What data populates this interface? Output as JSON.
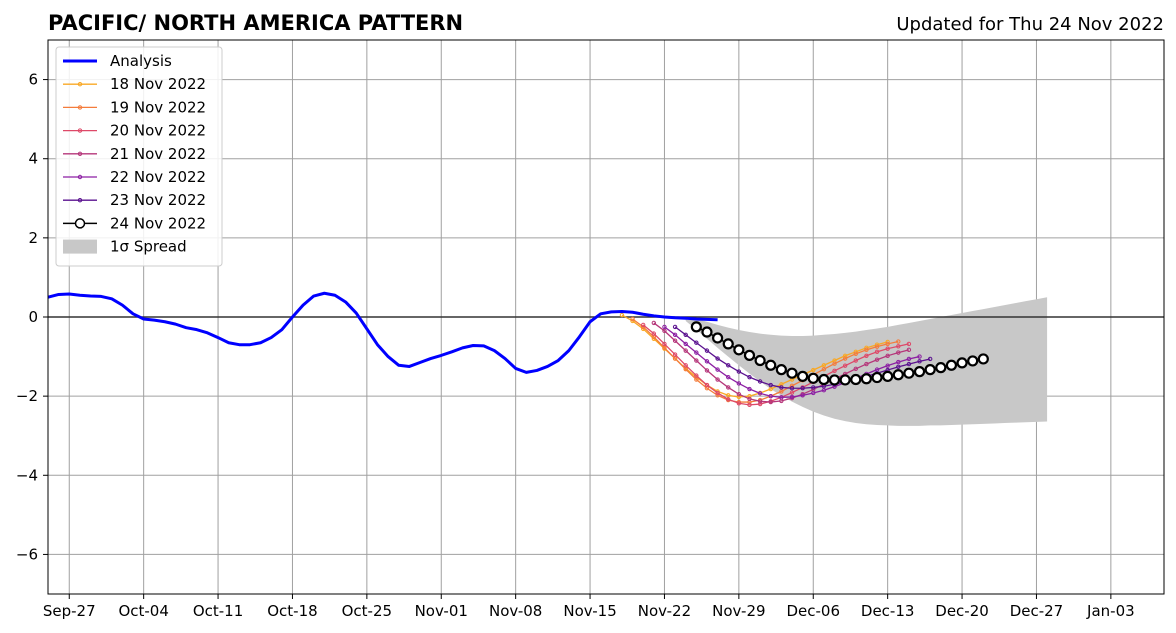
{
  "chart_data": {
    "type": "line",
    "title": "PACIFIC/ NORTH AMERICA PATTERN",
    "subtitle": "Updated for Thu 24 Nov 2022",
    "xlabel": "",
    "ylabel": "",
    "x_ticks": [
      "Sep-27",
      "Oct-04",
      "Oct-11",
      "Oct-18",
      "Oct-25",
      "Nov-01",
      "Nov-08",
      "Nov-15",
      "Nov-22",
      "Nov-29",
      "Dec-06",
      "Dec-13",
      "Dec-20",
      "Dec-27",
      "Jan-03"
    ],
    "y_ticks": [
      "6",
      "4",
      "2",
      "0",
      "−2",
      "−4",
      "−6"
    ],
    "x_range": [
      "2022-09-25",
      "2023-01-08"
    ],
    "ylim": [
      -7,
      7
    ],
    "grid": true,
    "legend_position": "upper-left",
    "analysis": {
      "name": "Analysis",
      "color": "#0000ff",
      "start_date": "2022-09-25",
      "values": [
        0.5,
        0.57,
        0.58,
        0.55,
        0.53,
        0.52,
        0.46,
        0.3,
        0.08,
        -0.05,
        -0.08,
        -0.12,
        -0.18,
        -0.27,
        -0.32,
        -0.4,
        -0.52,
        -0.65,
        -0.7,
        -0.7,
        -0.65,
        -0.52,
        -0.32,
        0.0,
        0.3,
        0.53,
        0.6,
        0.55,
        0.38,
        0.1,
        -0.3,
        -0.7,
        -1.0,
        -1.22,
        -1.25,
        -1.15,
        -1.05,
        -0.97,
        -0.88,
        -0.78,
        -0.72,
        -0.73,
        -0.85,
        -1.05,
        -1.3,
        -1.4,
        -1.35,
        -1.25,
        -1.1,
        -0.85,
        -0.5,
        -0.12,
        0.08,
        0.13,
        0.14,
        0.12,
        0.07,
        0.03,
        0.0,
        -0.02,
        -0.03,
        -0.05,
        -0.06,
        -0.07
      ]
    },
    "series": [
      {
        "name": "18 Nov 2022",
        "color": "#f9a825",
        "start_date": "2022-11-18",
        "values": [
          0.05,
          -0.1,
          -0.3,
          -0.55,
          -0.8,
          -1.05,
          -1.3,
          -1.52,
          -1.72,
          -1.88,
          -1.98,
          -2.02,
          -2.0,
          -1.92,
          -1.82,
          -1.7,
          -1.58,
          -1.46,
          -1.34,
          -1.22,
          -1.1,
          -0.98,
          -0.88,
          -0.78,
          -0.7,
          -0.63
        ]
      },
      {
        "name": "19 Nov 2022",
        "color": "#f47c3c",
        "start_date": "2022-11-19",
        "values": [
          -0.05,
          -0.25,
          -0.5,
          -0.78,
          -1.05,
          -1.32,
          -1.58,
          -1.8,
          -1.98,
          -2.1,
          -2.15,
          -2.15,
          -2.1,
          -2.0,
          -1.88,
          -1.74,
          -1.6,
          -1.46,
          -1.32,
          -1.18,
          -1.05,
          -0.93,
          -0.83,
          -0.75,
          -0.68,
          -0.62
        ]
      },
      {
        "name": "20 Nov 2022",
        "color": "#de4968",
        "start_date": "2022-11-20",
        "values": [
          -0.2,
          -0.42,
          -0.68,
          -0.95,
          -1.22,
          -1.48,
          -1.72,
          -1.92,
          -2.08,
          -2.18,
          -2.22,
          -2.2,
          -2.13,
          -2.03,
          -1.91,
          -1.78,
          -1.64,
          -1.5,
          -1.36,
          -1.23,
          -1.1,
          -0.98,
          -0.88,
          -0.8,
          -0.74,
          -0.68
        ]
      },
      {
        "name": "21 Nov 2022",
        "color": "#b5367a",
        "start_date": "2022-11-21",
        "values": [
          -0.15,
          -0.35,
          -0.6,
          -0.85,
          -1.1,
          -1.35,
          -1.58,
          -1.78,
          -1.95,
          -2.07,
          -2.13,
          -2.15,
          -2.12,
          -2.05,
          -1.95,
          -1.83,
          -1.7,
          -1.57,
          -1.44,
          -1.31,
          -1.19,
          -1.08,
          -0.98,
          -0.9,
          -0.83
        ]
      },
      {
        "name": "22 Nov 2022",
        "color": "#8c1fa3",
        "start_date": "2022-11-22",
        "values": [
          -0.25,
          -0.45,
          -0.68,
          -0.9,
          -1.12,
          -1.33,
          -1.52,
          -1.68,
          -1.82,
          -1.93,
          -2.0,
          -2.03,
          -2.02,
          -1.98,
          -1.92,
          -1.85,
          -1.76,
          -1.66,
          -1.55,
          -1.44,
          -1.33,
          -1.23,
          -1.14,
          -1.06,
          -1.0
        ]
      },
      {
        "name": "23 Nov 2022",
        "color": "#5a118f",
        "start_date": "2022-11-23",
        "values": [
          -0.25,
          -0.45,
          -0.65,
          -0.85,
          -1.05,
          -1.22,
          -1.38,
          -1.52,
          -1.63,
          -1.72,
          -1.78,
          -1.8,
          -1.8,
          -1.78,
          -1.75,
          -1.7,
          -1.64,
          -1.57,
          -1.5,
          -1.42,
          -1.34,
          -1.26,
          -1.19,
          -1.12,
          -1.06
        ]
      },
      {
        "name": "24 Nov 2022",
        "color": "#000000",
        "marker": "open-circle",
        "start_date": "2022-11-25",
        "values": [
          -0.25,
          -0.38,
          -0.53,
          -0.68,
          -0.83,
          -0.97,
          -1.1,
          -1.22,
          -1.33,
          -1.42,
          -1.5,
          -1.55,
          -1.58,
          -1.59,
          -1.59,
          -1.58,
          -1.56,
          -1.53,
          -1.5,
          -1.46,
          -1.42,
          -1.38,
          -1.33,
          -1.28,
          -1.22,
          -1.16,
          -1.11,
          -1.06
        ]
      }
    ],
    "spread": {
      "name": "1σ Spread",
      "color": "#c8c8c8",
      "start_date": "2022-11-24",
      "upper": [
        0.0,
        -0.05,
        -0.12,
        -0.2,
        -0.27,
        -0.33,
        -0.38,
        -0.42,
        -0.45,
        -0.47,
        -0.48,
        -0.48,
        -0.47,
        -0.45,
        -0.43,
        -0.4,
        -0.37,
        -0.33,
        -0.29,
        -0.25,
        -0.2,
        -0.15,
        -0.1,
        -0.05,
        0.0,
        0.05,
        0.1,
        0.15,
        0.2,
        0.25,
        0.3,
        0.35,
        0.4,
        0.45,
        0.5
      ],
      "lower": [
        -0.1,
        -0.32,
        -0.55,
        -0.78,
        -1.0,
        -1.22,
        -1.43,
        -1.63,
        -1.82,
        -1.99,
        -2.14,
        -2.27,
        -2.39,
        -2.49,
        -2.57,
        -2.63,
        -2.68,
        -2.71,
        -2.73,
        -2.74,
        -2.75,
        -2.75,
        -2.75,
        -2.74,
        -2.74,
        -2.73,
        -2.72,
        -2.71,
        -2.7,
        -2.69,
        -2.68,
        -2.67,
        -2.66,
        -2.65,
        -2.64
      ]
    }
  }
}
